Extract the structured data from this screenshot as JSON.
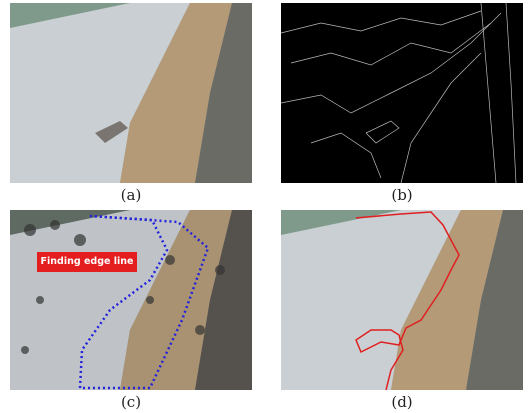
{
  "figure": {
    "panels": [
      {
        "caption": "(a)"
      },
      {
        "caption": "(b)"
      },
      {
        "caption": "(c)"
      },
      {
        "caption": "(d)"
      }
    ],
    "annotation": "Finding edge line"
  }
}
